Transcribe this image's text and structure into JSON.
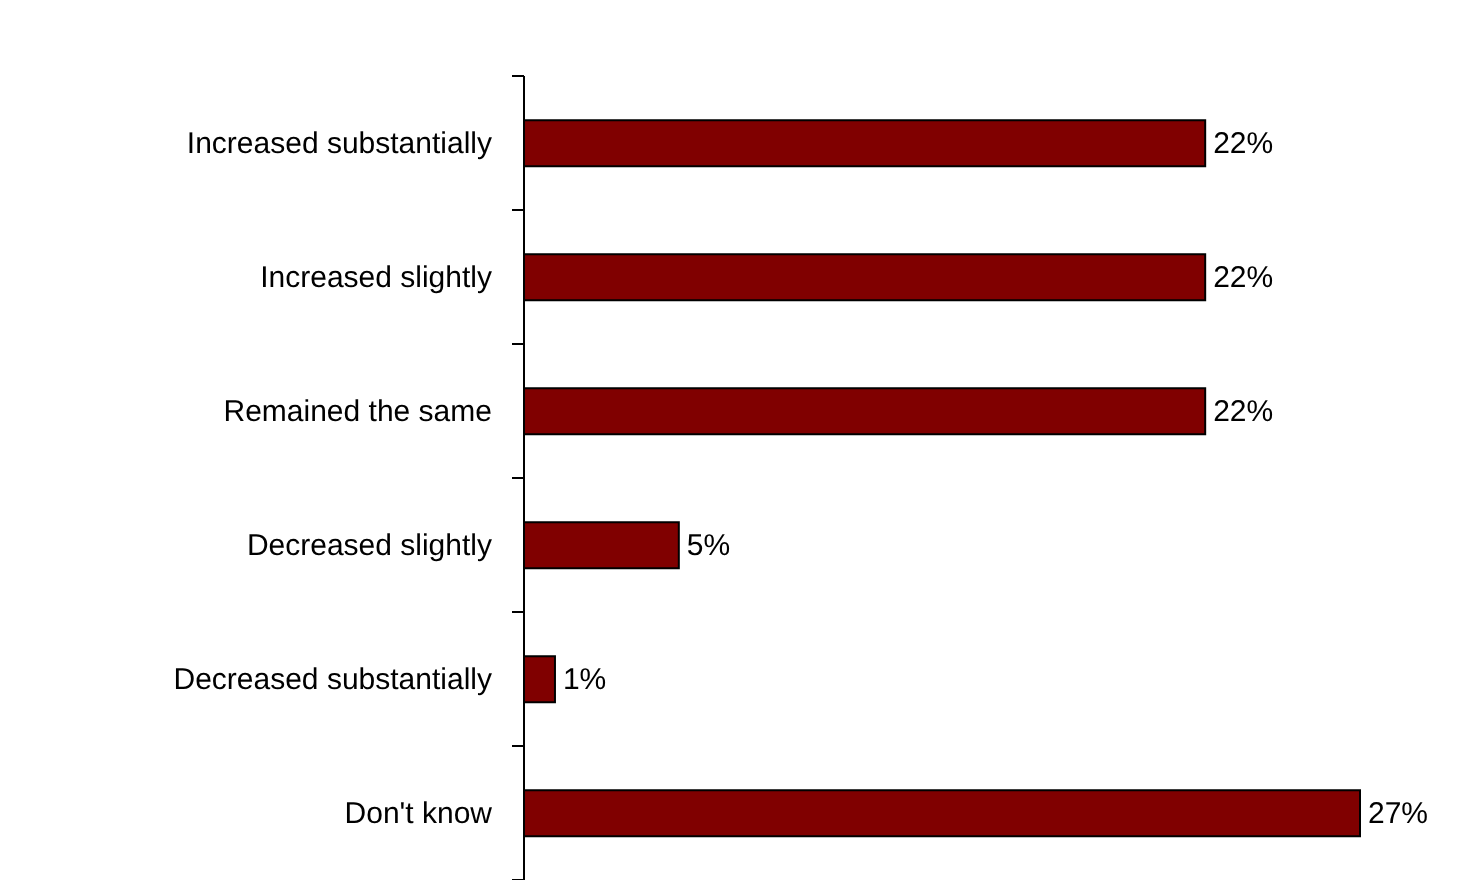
{
  "chart_data": {
    "type": "bar",
    "orientation": "horizontal",
    "categories": [
      "Increased substantially",
      "Increased slightly",
      "Remained the same",
      "Decreased slightly",
      "Decreased substantially",
      "Don't know"
    ],
    "values": [
      22,
      22,
      22,
      5,
      1,
      27
    ],
    "value_labels": [
      "22%",
      "22%",
      "22%",
      "5%",
      "1%",
      "27%"
    ],
    "color": "#800000"
  }
}
